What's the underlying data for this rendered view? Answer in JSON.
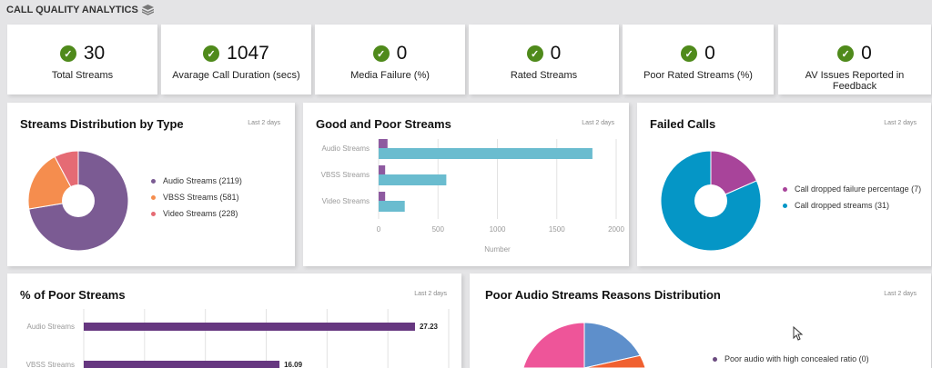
{
  "header": {
    "title": "CALL QUALITY ANALYTICS",
    "icon": "layers-icon"
  },
  "kpis": [
    {
      "value": "30",
      "label": "Total Streams"
    },
    {
      "value": "1047",
      "label": "Avarage Call Duration (secs)"
    },
    {
      "value": "0",
      "label": "Media Failure (%)"
    },
    {
      "value": "0",
      "label": "Rated Streams"
    },
    {
      "value": "0",
      "label": "Poor Rated Streams (%)"
    },
    {
      "value": "0",
      "label": "AV Issues Reported in Feedback"
    }
  ],
  "chart_data": [
    {
      "type": "pie",
      "title": "Streams Distribution by Type",
      "range": "Last 2 days",
      "donut": true,
      "slices": [
        {
          "label": "Audio Streams (2119)",
          "value": 2119,
          "color": "#7b5b93"
        },
        {
          "label": "VBSS Streams (581)",
          "value": 581,
          "color": "#f58d4e"
        },
        {
          "label": "Video Streams (228)",
          "value": 228,
          "color": "#e56b74"
        }
      ]
    },
    {
      "type": "bar",
      "orientation": "horizontal",
      "title": "Good and Poor Streams",
      "range": "Last 2 days",
      "xlabel": "Number",
      "xlim": [
        0,
        2000
      ],
      "xticks": [
        "0",
        "500",
        "1000",
        "1500",
        "2000"
      ],
      "categories": [
        "Audio Streams",
        "VBSS Streams",
        "Video Streams"
      ],
      "series": [
        {
          "values": [
            75,
            55,
            55
          ],
          "color": "#8e5aa0"
        },
        {
          "values": [
            1800,
            570,
            220
          ],
          "color": "#6abccf"
        }
      ]
    },
    {
      "type": "pie",
      "title": "Failed Calls",
      "range": "Last 2 days",
      "donut": true,
      "slices": [
        {
          "label": "Call dropped failure percentage (7)",
          "value": 7,
          "color": "#a8449a"
        },
        {
          "label": "Call dropped streams (31)",
          "value": 31,
          "color": "#0596c6"
        }
      ]
    },
    {
      "type": "bar",
      "orientation": "horizontal",
      "title": "% of Poor Streams",
      "range": "Last 2 days",
      "xlim": [
        0,
        30
      ],
      "grid": true,
      "categories": [
        "Audio Streams",
        "VBSS Streams"
      ],
      "values": [
        27.23,
        16.09
      ],
      "labels": [
        "27.23",
        "16.09"
      ],
      "color": "#663780"
    },
    {
      "type": "pie",
      "title": "Poor Audio Streams Reasons Distribution",
      "range": "Last 2 days",
      "legend": [
        "Poor audio with high concealed ratio (0)"
      ],
      "legend_colors": [
        "#6b4b7f"
      ],
      "colors": [
        "#5e8fcb",
        "#f06030",
        "#ee5599"
      ]
    }
  ]
}
